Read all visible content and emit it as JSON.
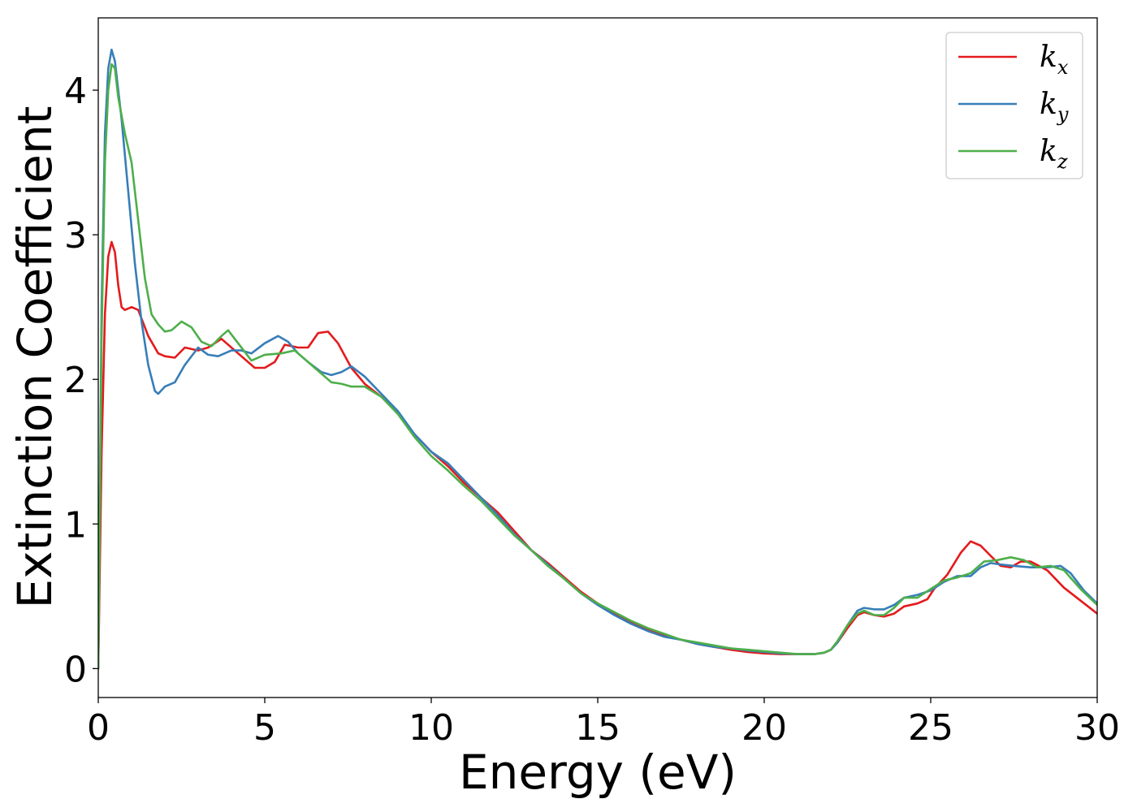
{
  "chart_data": {
    "type": "line",
    "title": "",
    "xlabel": "Energy (eV)",
    "ylabel": "Extinction Coefficient",
    "xlim": [
      0,
      30
    ],
    "ylim": [
      -0.2,
      4.5
    ],
    "xticks": [
      0,
      5,
      10,
      15,
      20,
      25,
      30
    ],
    "xtick_labels": [
      "0",
      "5",
      "10",
      "15",
      "20",
      "25",
      "30"
    ],
    "yticks": [
      0,
      1,
      2,
      3,
      4
    ],
    "ytick_labels": [
      "0",
      "1",
      "2",
      "3",
      "4"
    ],
    "grid": false,
    "legend_position": "top-right",
    "series": [
      {
        "name": "k",
        "subscript": "x",
        "color": "#e41a1c",
        "points": [
          [
            0,
            0.0
          ],
          [
            0.1,
            1.5
          ],
          [
            0.2,
            2.45
          ],
          [
            0.3,
            2.85
          ],
          [
            0.4,
            2.95
          ],
          [
            0.5,
            2.88
          ],
          [
            0.6,
            2.65
          ],
          [
            0.7,
            2.5
          ],
          [
            0.8,
            2.48
          ],
          [
            1.0,
            2.5
          ],
          [
            1.2,
            2.48
          ],
          [
            1.5,
            2.3
          ],
          [
            1.8,
            2.18
          ],
          [
            2.0,
            2.16
          ],
          [
            2.3,
            2.15
          ],
          [
            2.6,
            2.22
          ],
          [
            3.0,
            2.2
          ],
          [
            3.3,
            2.22
          ],
          [
            3.7,
            2.28
          ],
          [
            4.2,
            2.18
          ],
          [
            4.7,
            2.08
          ],
          [
            5.0,
            2.08
          ],
          [
            5.3,
            2.12
          ],
          [
            5.6,
            2.24
          ],
          [
            6.0,
            2.22
          ],
          [
            6.3,
            2.22
          ],
          [
            6.6,
            2.32
          ],
          [
            6.9,
            2.33
          ],
          [
            7.2,
            2.25
          ],
          [
            7.6,
            2.08
          ],
          [
            8.0,
            1.97
          ],
          [
            8.5,
            1.88
          ],
          [
            9.0,
            1.77
          ],
          [
            9.5,
            1.62
          ],
          [
            10.0,
            1.5
          ],
          [
            10.5,
            1.4
          ],
          [
            11.0,
            1.28
          ],
          [
            11.5,
            1.18
          ],
          [
            12.0,
            1.08
          ],
          [
            12.5,
            0.95
          ],
          [
            13.0,
            0.82
          ],
          [
            13.5,
            0.73
          ],
          [
            14.0,
            0.63
          ],
          [
            14.5,
            0.53
          ],
          [
            15.0,
            0.45
          ],
          [
            15.5,
            0.38
          ],
          [
            16.0,
            0.32
          ],
          [
            16.5,
            0.27
          ],
          [
            17.0,
            0.23
          ],
          [
            17.5,
            0.2
          ],
          [
            18.0,
            0.17
          ],
          [
            18.5,
            0.15
          ],
          [
            19.0,
            0.13
          ],
          [
            19.5,
            0.115
          ],
          [
            20.0,
            0.105
          ],
          [
            20.5,
            0.1
          ],
          [
            21.0,
            0.1
          ],
          [
            21.5,
            0.1
          ],
          [
            21.8,
            0.11
          ],
          [
            22.0,
            0.13
          ],
          [
            22.2,
            0.18
          ],
          [
            22.5,
            0.28
          ],
          [
            22.8,
            0.37
          ],
          [
            23.0,
            0.39
          ],
          [
            23.3,
            0.37
          ],
          [
            23.6,
            0.36
          ],
          [
            23.9,
            0.38
          ],
          [
            24.2,
            0.43
          ],
          [
            24.6,
            0.45
          ],
          [
            24.9,
            0.48
          ],
          [
            25.1,
            0.55
          ],
          [
            25.5,
            0.65
          ],
          [
            25.9,
            0.8
          ],
          [
            26.2,
            0.88
          ],
          [
            26.5,
            0.85
          ],
          [
            26.8,
            0.78
          ],
          [
            27.1,
            0.71
          ],
          [
            27.4,
            0.7
          ],
          [
            27.7,
            0.74
          ],
          [
            28.0,
            0.74
          ],
          [
            28.5,
            0.68
          ],
          [
            29.0,
            0.56
          ],
          [
            29.5,
            0.47
          ],
          [
            30.0,
            0.38
          ]
        ]
      },
      {
        "name": "k",
        "subscript": "y",
        "color": "#377eb8",
        "points": [
          [
            0,
            0.0
          ],
          [
            0.1,
            2.5
          ],
          [
            0.2,
            3.7
          ],
          [
            0.3,
            4.15
          ],
          [
            0.4,
            4.28
          ],
          [
            0.5,
            4.2
          ],
          [
            0.7,
            3.8
          ],
          [
            0.9,
            3.3
          ],
          [
            1.1,
            2.8
          ],
          [
            1.3,
            2.4
          ],
          [
            1.5,
            2.1
          ],
          [
            1.7,
            1.92
          ],
          [
            1.8,
            1.9
          ],
          [
            2.0,
            1.95
          ],
          [
            2.3,
            1.98
          ],
          [
            2.6,
            2.1
          ],
          [
            3.0,
            2.22
          ],
          [
            3.3,
            2.17
          ],
          [
            3.6,
            2.16
          ],
          [
            4.0,
            2.2
          ],
          [
            4.3,
            2.2
          ],
          [
            4.6,
            2.18
          ],
          [
            5.0,
            2.25
          ],
          [
            5.4,
            2.3
          ],
          [
            5.7,
            2.26
          ],
          [
            6.0,
            2.18
          ],
          [
            6.3,
            2.12
          ],
          [
            6.7,
            2.05
          ],
          [
            7.0,
            2.03
          ],
          [
            7.3,
            2.05
          ],
          [
            7.6,
            2.09
          ],
          [
            8.0,
            2.02
          ],
          [
            8.5,
            1.9
          ],
          [
            9.0,
            1.78
          ],
          [
            9.5,
            1.62
          ],
          [
            10.0,
            1.5
          ],
          [
            10.5,
            1.42
          ],
          [
            11.0,
            1.3
          ],
          [
            11.5,
            1.18
          ],
          [
            12.0,
            1.06
          ],
          [
            12.5,
            0.93
          ],
          [
            13.0,
            0.82
          ],
          [
            13.5,
            0.72
          ],
          [
            14.0,
            0.62
          ],
          [
            14.5,
            0.52
          ],
          [
            15.0,
            0.44
          ],
          [
            15.5,
            0.37
          ],
          [
            16.0,
            0.31
          ],
          [
            16.5,
            0.26
          ],
          [
            17.0,
            0.22
          ],
          [
            17.5,
            0.2
          ],
          [
            18.0,
            0.17
          ],
          [
            18.5,
            0.15
          ],
          [
            19.0,
            0.14
          ],
          [
            19.5,
            0.125
          ],
          [
            20.0,
            0.115
          ],
          [
            20.5,
            0.105
          ],
          [
            21.0,
            0.1
          ],
          [
            21.5,
            0.1
          ],
          [
            21.8,
            0.11
          ],
          [
            22.0,
            0.13
          ],
          [
            22.2,
            0.18
          ],
          [
            22.5,
            0.3
          ],
          [
            22.8,
            0.4
          ],
          [
            23.0,
            0.42
          ],
          [
            23.3,
            0.41
          ],
          [
            23.6,
            0.41
          ],
          [
            23.9,
            0.44
          ],
          [
            24.2,
            0.49
          ],
          [
            24.6,
            0.51
          ],
          [
            25.0,
            0.54
          ],
          [
            25.4,
            0.6
          ],
          [
            25.8,
            0.64
          ],
          [
            26.2,
            0.64
          ],
          [
            26.5,
            0.7
          ],
          [
            26.8,
            0.73
          ],
          [
            27.1,
            0.72
          ],
          [
            27.5,
            0.71
          ],
          [
            28.0,
            0.7
          ],
          [
            28.5,
            0.7
          ],
          [
            28.9,
            0.71
          ],
          [
            29.2,
            0.66
          ],
          [
            29.6,
            0.54
          ],
          [
            30.0,
            0.45
          ]
        ]
      },
      {
        "name": "k",
        "subscript": "z",
        "color": "#4daf4a",
        "points": [
          [
            0,
            0.0
          ],
          [
            0.1,
            2.3
          ],
          [
            0.2,
            3.5
          ],
          [
            0.3,
            4.0
          ],
          [
            0.4,
            4.18
          ],
          [
            0.5,
            4.15
          ],
          [
            0.6,
            3.95
          ],
          [
            0.8,
            3.7
          ],
          [
            1.0,
            3.5
          ],
          [
            1.2,
            3.1
          ],
          [
            1.4,
            2.7
          ],
          [
            1.6,
            2.45
          ],
          [
            1.8,
            2.38
          ],
          [
            2.0,
            2.33
          ],
          [
            2.2,
            2.34
          ],
          [
            2.5,
            2.4
          ],
          [
            2.8,
            2.36
          ],
          [
            3.1,
            2.26
          ],
          [
            3.4,
            2.23
          ],
          [
            3.7,
            2.3
          ],
          [
            3.9,
            2.34
          ],
          [
            4.2,
            2.25
          ],
          [
            4.6,
            2.13
          ],
          [
            5.0,
            2.17
          ],
          [
            5.5,
            2.18
          ],
          [
            5.9,
            2.2
          ],
          [
            6.3,
            2.12
          ],
          [
            6.7,
            2.04
          ],
          [
            7.0,
            1.98
          ],
          [
            7.3,
            1.97
          ],
          [
            7.6,
            1.95
          ],
          [
            8.0,
            1.95
          ],
          [
            8.5,
            1.88
          ],
          [
            9.0,
            1.76
          ],
          [
            9.5,
            1.6
          ],
          [
            10.0,
            1.47
          ],
          [
            10.5,
            1.37
          ],
          [
            11.0,
            1.26
          ],
          [
            11.5,
            1.16
          ],
          [
            12.0,
            1.04
          ],
          [
            12.5,
            0.92
          ],
          [
            13.0,
            0.82
          ],
          [
            13.5,
            0.71
          ],
          [
            14.0,
            0.62
          ],
          [
            14.5,
            0.52
          ],
          [
            15.0,
            0.45
          ],
          [
            15.5,
            0.39
          ],
          [
            16.0,
            0.33
          ],
          [
            16.5,
            0.28
          ],
          [
            17.0,
            0.24
          ],
          [
            17.5,
            0.2
          ],
          [
            18.0,
            0.18
          ],
          [
            18.5,
            0.16
          ],
          [
            19.0,
            0.14
          ],
          [
            19.5,
            0.13
          ],
          [
            20.0,
            0.12
          ],
          [
            20.5,
            0.11
          ],
          [
            21.0,
            0.1
          ],
          [
            21.5,
            0.1
          ],
          [
            21.8,
            0.11
          ],
          [
            22.0,
            0.13
          ],
          [
            22.2,
            0.19
          ],
          [
            22.5,
            0.3
          ],
          [
            22.8,
            0.38
          ],
          [
            23.0,
            0.4
          ],
          [
            23.3,
            0.37
          ],
          [
            23.6,
            0.37
          ],
          [
            23.9,
            0.42
          ],
          [
            24.2,
            0.49
          ],
          [
            24.6,
            0.49
          ],
          [
            25.0,
            0.55
          ],
          [
            25.4,
            0.61
          ],
          [
            25.8,
            0.63
          ],
          [
            26.2,
            0.66
          ],
          [
            26.6,
            0.74
          ],
          [
            27.0,
            0.75
          ],
          [
            27.4,
            0.77
          ],
          [
            27.8,
            0.75
          ],
          [
            28.2,
            0.7
          ],
          [
            28.6,
            0.71
          ],
          [
            29.0,
            0.68
          ],
          [
            29.5,
            0.55
          ],
          [
            30.0,
            0.44
          ]
        ]
      }
    ]
  }
}
